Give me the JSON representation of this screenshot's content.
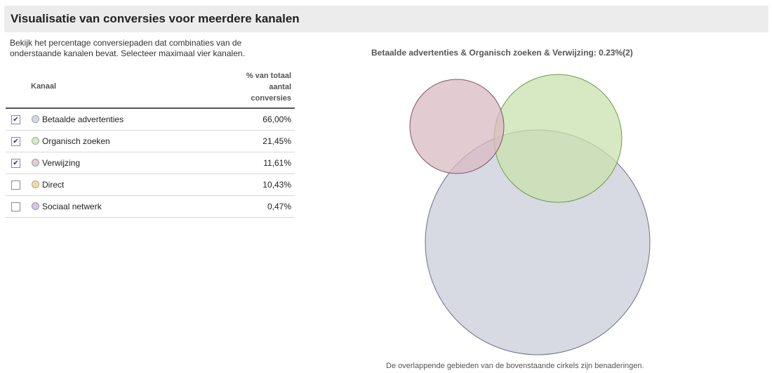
{
  "header": {
    "title": "Visualisatie van conversies voor meerdere kanalen"
  },
  "intro": {
    "text": "Bekijk het percentage conversiepaden dat combinaties van de onderstaande kanalen bevat. Selecteer maximaal vier kanalen."
  },
  "table": {
    "col_channel": "Kanaal",
    "col_pct_lines": [
      "% van totaal",
      "aantal",
      "conversies"
    ],
    "rows": [
      {
        "label": "Betaalde advertenties",
        "value": "66,00%",
        "checked": true,
        "color": "#d5d8e3"
      },
      {
        "label": "Organisch zoeken",
        "value": "21,45%",
        "checked": true,
        "color": "#d6e9c6"
      },
      {
        "label": "Verwijzing",
        "value": "11,61%",
        "checked": true,
        "color": "#e2ccd3"
      },
      {
        "label": "Direct",
        "value": "10,43%",
        "checked": false,
        "color": "#ecdcaa"
      },
      {
        "label": "Sociaal netwerk",
        "value": "0,47%",
        "checked": false,
        "color": "#d3c6e6"
      }
    ]
  },
  "chart": {
    "title": "Betaalde advertenties & Organisch zoeken & Verwijzing: 0.23%(2)",
    "note": "De overlappende gebieden van de bovenstaande cirkels zijn benaderingen.",
    "circles": [
      {
        "name": "Betaalde advertenties",
        "fill": "#c9ccda",
        "stroke": "#6e7088"
      },
      {
        "name": "Organisch zoeken",
        "fill": "#c9e2ad",
        "stroke": "#6e9a48"
      },
      {
        "name": "Verwijzing",
        "fill": "#d9b9c3",
        "stroke": "#7d5463"
      }
    ]
  }
}
